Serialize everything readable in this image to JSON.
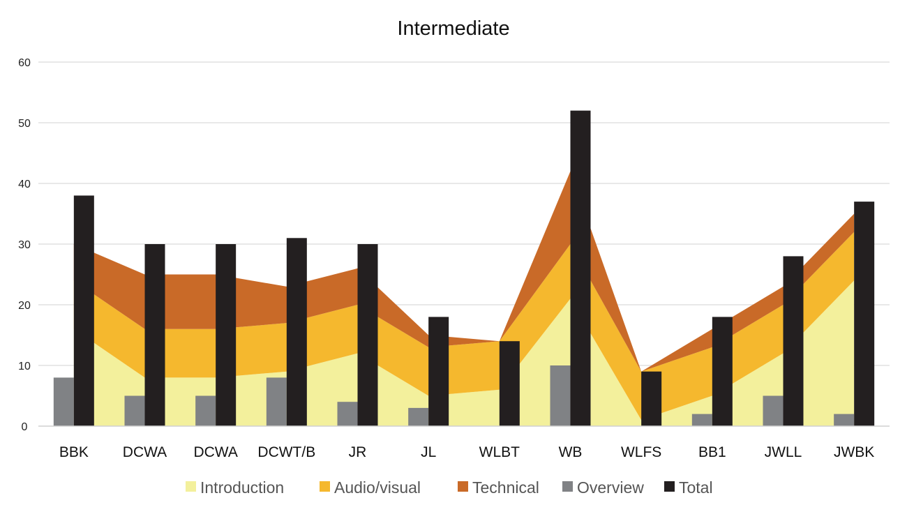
{
  "chart_data": {
    "type": "area+bar",
    "title": "Intermediate",
    "categories": [
      "BBK",
      "DCWA",
      "DCWA",
      "DCWT/B",
      "JR",
      "JL",
      "WLBT",
      "WB",
      "WLFS",
      "BB1",
      "JWLL",
      "JWBK"
    ],
    "ylim": [
      0,
      60
    ],
    "yticks": [
      0,
      10,
      20,
      30,
      40,
      50,
      60
    ],
    "grid": true,
    "legend_position": "bottom",
    "stacked_area_series": [
      {
        "name": "Introduction",
        "color": "#f3f09c",
        "values": [
          16,
          8,
          8,
          9,
          12,
          5,
          6,
          21,
          1,
          5,
          12,
          24
        ]
      },
      {
        "name": "Audio/visual",
        "color": "#f5b82e",
        "values": [
          8,
          8,
          8,
          8,
          8,
          8,
          8,
          9,
          8,
          8,
          8,
          8
        ]
      },
      {
        "name": "Technical",
        "color": "#c96a28",
        "values": [
          6,
          9,
          9,
          6,
          6,
          2,
          0,
          12,
          0,
          3,
          3,
          3
        ]
      }
    ],
    "bar_series": [
      {
        "name": "Overview",
        "color": "#808285",
        "values": [
          8,
          5,
          5,
          8,
          4,
          3,
          0,
          10,
          0,
          2,
          5,
          2
        ]
      },
      {
        "name": "Total",
        "color": "#231f20",
        "values": [
          38,
          30,
          30,
          31,
          30,
          18,
          14,
          52,
          9,
          18,
          28,
          37
        ]
      }
    ]
  }
}
